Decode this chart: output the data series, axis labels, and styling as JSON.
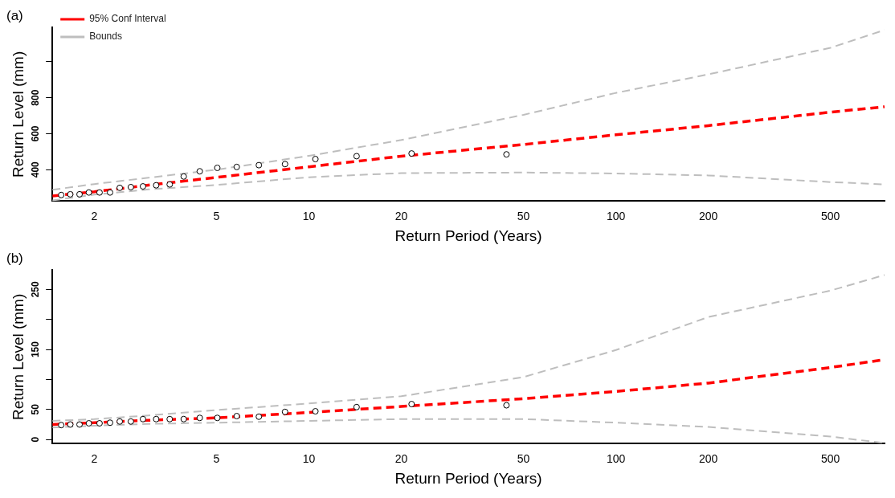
{
  "chart_data": [
    {
      "type": "line",
      "title": "(a)",
      "xlabel": "Return Period (Years)",
      "ylabel": "Return Level (mm)",
      "log": "x",
      "grid": false,
      "legend": "top left",
      "xlim": [
        1.46,
        750
      ],
      "xticks": [
        2,
        5,
        10,
        20,
        50,
        100,
        200,
        500
      ],
      "ylim": [
        225,
        1190
      ],
      "yticks": [
        400,
        600,
        800,
        {
          "value": 1000,
          "label": null
        }
      ],
      "series": [
        {
          "type": "scatter",
          "color": "#000000",
          "marker": "circle",
          "x": [
            1.56,
            1.67,
            1.79,
            1.92,
            2.08,
            2.25,
            2.42,
            2.63,
            2.88,
            3.18,
            3.52,
            3.91,
            4.41,
            5.03,
            5.82,
            6.87,
            8.36,
            10.5,
            14.3,
            21.6,
            44
          ],
          "values": [
            259,
            263,
            263,
            273,
            273,
            273,
            299,
            303,
            307,
            313,
            318,
            362,
            391,
            410,
            415,
            425,
            431,
            459,
            475,
            490,
            485
          ]
        },
        {
          "name": "95% Conf Interval",
          "color": "#ff0000",
          "line_style": "dashed",
          "marker": "none",
          "x": [
            1.46,
            2,
            3,
            5,
            10,
            20,
            50,
            100,
            200,
            500,
            750
          ],
          "values": [
            254,
            277,
            314,
            357,
            416,
            475,
            540,
            594,
            645,
            720,
            750
          ]
        },
        {
          "name": "Bounds",
          "color": "#bebebe",
          "line_style": "dashed",
          "marker": "none",
          "x": [
            1.46,
            2,
            3,
            5,
            10,
            20,
            50,
            100,
            200,
            500,
            750
          ],
          "values": [
            288,
            320,
            355,
            400,
            477,
            565,
            705,
            827,
            930,
            1078,
            1177
          ]
        },
        {
          "color": "#bebebe",
          "line_style": "dashed",
          "marker": "none",
          "x": [
            1.46,
            2,
            3,
            5,
            10,
            20,
            50,
            100,
            200,
            500,
            750
          ],
          "values": [
            229,
            261,
            290,
            315,
            358,
            381,
            384,
            379,
            368,
            331,
            318
          ]
        }
      ]
    },
    {
      "type": "line",
      "title": "(b)",
      "xlabel": "Return Period (Years)",
      "ylabel": "Return Level (mm)",
      "log": "x",
      "grid": false,
      "legend": false,
      "xlim": [
        1.46,
        750
      ],
      "xticks": [
        2,
        5,
        10,
        20,
        50,
        100,
        200,
        500
      ],
      "ylim": [
        -7,
        282
      ],
      "yticks": [
        0,
        50,
        {
          "value": 100,
          "label": null
        },
        150,
        {
          "value": 200,
          "label": null
        },
        250
      ],
      "series": [
        {
          "type": "scatter",
          "color": "#000000",
          "marker": "circle",
          "x": [
            1.56,
            1.67,
            1.79,
            1.92,
            2.08,
            2.25,
            2.42,
            2.63,
            2.88,
            3.18,
            3.52,
            3.91,
            4.41,
            5.03,
            5.82,
            6.87,
            8.36,
            10.5,
            14.3,
            21.6,
            44
          ],
          "values": [
            24,
            25,
            25,
            27,
            27,
            28,
            30,
            30,
            34,
            34,
            34,
            34,
            36,
            36,
            39,
            38,
            46,
            47,
            54,
            59,
            57
          ]
        },
        {
          "color": "#ff0000",
          "line_style": "dashed",
          "marker": "none",
          "x": [
            1.46,
            2,
            3,
            5,
            10,
            20,
            50,
            100,
            200,
            500,
            750
          ],
          "values": [
            25,
            28,
            32,
            36,
            45,
            55,
            68,
            80,
            94,
            120,
            133
          ]
        },
        {
          "color": "#bebebe",
          "line_style": "dashed",
          "marker": "none",
          "x": [
            1.46,
            2,
            3,
            5,
            10,
            20,
            50,
            100,
            200,
            500,
            750
          ],
          "values": [
            31,
            34,
            40,
            49,
            60,
            72,
            104,
            149,
            204,
            248,
            274
          ]
        },
        {
          "color": "#bebebe",
          "line_style": "dashed",
          "marker": "none",
          "x": [
            1.46,
            2,
            3,
            5,
            10,
            20,
            50,
            100,
            200,
            500,
            750
          ],
          "values": [
            20,
            23,
            26,
            28,
            31,
            34,
            34,
            28,
            21,
            5,
            -6
          ]
        }
      ]
    }
  ]
}
